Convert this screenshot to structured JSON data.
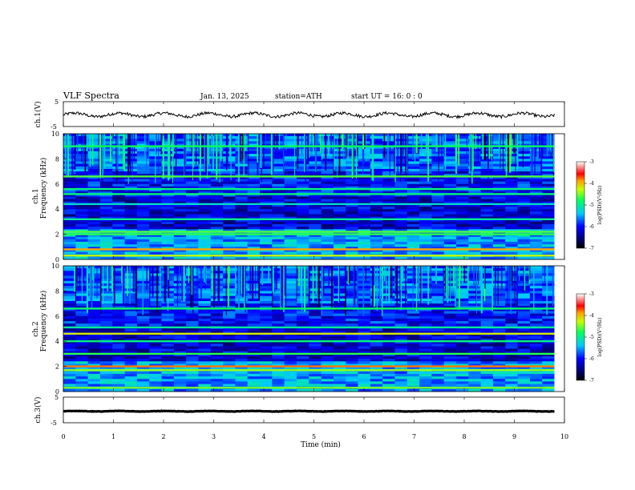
{
  "header": {
    "title": "VLF  Spectra",
    "date": "Jan.  13,  2025",
    "station": "station=ATH",
    "start_ut": "start  UT  =   16: 0  : 0"
  },
  "chart_data": [
    {
      "type": "line",
      "ylabel": "ch.1(V)",
      "ylim": [
        -5,
        5
      ],
      "yticks": [
        "5",
        "-5"
      ],
      "series": [
        {
          "mean": -0.3,
          "values_note": ""
        }
      ]
    },
    {
      "type": "heatmap",
      "ylabel": "ch.1\nFrequency  (kHz)",
      "ylabel_lines": [
        "ch.1",
        "Frequency  (kHz)"
      ],
      "ylim": [
        0,
        10
      ],
      "yticks": [
        "0",
        "2",
        "4",
        "6",
        "8",
        "10"
      ],
      "bands_khz": [
        {
          "freq": 9.0,
          "level": -4.8
        },
        {
          "freq": 6.6,
          "level": -4.6
        },
        {
          "freq": 5.6,
          "level": -4.9
        },
        {
          "freq": 5.2,
          "level": -4.9
        },
        {
          "freq": 4.4,
          "level": -5.2
        },
        {
          "freq": 3.2,
          "level": -5.0
        },
        {
          "freq": 2.2,
          "level": -4.6
        },
        {
          "freq": 2.0,
          "level": -4.7
        },
        {
          "freq": 0.8,
          "level": -3.9
        },
        {
          "freq": 0.3,
          "level": -4.3
        }
      ],
      "colorbar": {
        "label": "log(PSD)(V²/Hz)",
        "ticks": [
          "-3",
          "-4",
          "-5",
          "-6",
          "-7"
        ],
        "range": [
          -7,
          -3
        ]
      }
    },
    {
      "type": "heatmap",
      "ylabel": "ch.2\nFrequency  (kHz)",
      "ylabel_lines": [
        "ch.2",
        "Frequency  (kHz)"
      ],
      "ylim": [
        0,
        10
      ],
      "yticks": [
        "0",
        "2",
        "4",
        "6",
        "8",
        "10"
      ],
      "bands_khz": [
        {
          "freq": 6.6,
          "level": -4.8
        },
        {
          "freq": 5.1,
          "level": -5.0
        },
        {
          "freq": 4.6,
          "level": -4.2
        },
        {
          "freq": 4.0,
          "level": -4.9
        },
        {
          "freq": 3.0,
          "level": -4.7
        },
        {
          "freq": 2.0,
          "level": -3.8
        },
        {
          "freq": 1.7,
          "level": -4.4
        },
        {
          "freq": 0.3,
          "level": -4.5
        }
      ],
      "colorbar": {
        "label": "log(PSD)(V²/Hz)",
        "ticks": [
          "-3",
          "-4",
          "-5",
          "-6",
          "-7"
        ],
        "range": [
          -7,
          -3
        ]
      }
    },
    {
      "type": "line",
      "ylabel": "ch.3(V)",
      "ylim": [
        -5,
        5
      ],
      "yticks": [
        "5",
        "-5"
      ],
      "series": [
        {
          "mean": -0.5
        }
      ]
    }
  ],
  "xaxis": {
    "label": "Time  (min)",
    "range": [
      0,
      10
    ],
    "ticks": [
      "0",
      "1",
      "2",
      "3",
      "4",
      "5",
      "6",
      "7",
      "8",
      "9",
      "10"
    ],
    "data_end": 9.8
  }
}
